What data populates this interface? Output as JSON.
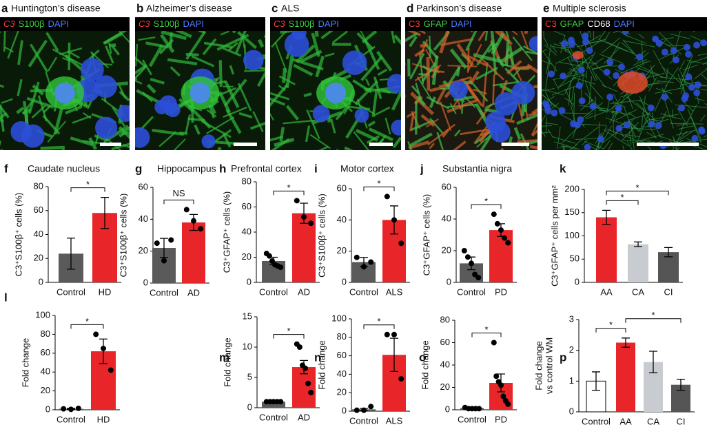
{
  "image_panels": [
    {
      "letter": "a",
      "title": "Huntington’s disease",
      "stains": [
        {
          "text": "C3",
          "color": "#ff3b30"
        },
        {
          "text": "S100β",
          "color": "#3fd13f"
        },
        {
          "text": "DAPI",
          "color": "#4a7bff"
        }
      ]
    },
    {
      "letter": "b",
      "title": "Alzheimer’s disease",
      "stains": [
        {
          "text": "C3",
          "color": "#ff3b30"
        },
        {
          "text": "S100β",
          "color": "#3fd13f"
        },
        {
          "text": "DAPI",
          "color": "#4a7bff"
        }
      ]
    },
    {
      "letter": "c",
      "title": "ALS",
      "stains": [
        {
          "text": "C3",
          "color": "#ff3b30"
        },
        {
          "text": "S100β",
          "color": "#3fd13f"
        },
        {
          "text": "DAPI",
          "color": "#4a7bff"
        }
      ]
    },
    {
      "letter": "d",
      "title": "Parkinson’s disease",
      "stains": [
        {
          "text": "C3",
          "color": "#ff3b30"
        },
        {
          "text": "GFAP",
          "color": "#3fd13f"
        },
        {
          "text": "DAPI",
          "color": "#4a7bff"
        }
      ]
    },
    {
      "letter": "e",
      "title": "Multiple sclerosis",
      "stains": [
        {
          "text": "C3",
          "color": "#ff3b30"
        },
        {
          "text": "GFAP",
          "color": "#3fd13f"
        },
        {
          "text": "CD68",
          "color": "#ffffff"
        },
        {
          "text": "DAPI",
          "color": "#4a7bff"
        }
      ]
    }
  ],
  "chart_data": [
    {
      "type": "bar",
      "letter": "f",
      "title": "Caudate nucleus",
      "ylabel": [
        "C3⁺S100β⁺ cells (%)"
      ],
      "categories": [
        "Control",
        "HD"
      ],
      "values": [
        24,
        58
      ],
      "errors": [
        13,
        13
      ],
      "colors": [
        "#5a5a5a",
        "#e8262a"
      ],
      "ylim": [
        0,
        80
      ],
      "yticks": [
        0,
        20,
        40,
        60,
        80
      ],
      "brackets": [
        {
          "from": 0,
          "to": 1,
          "label": "*"
        }
      ]
    },
    {
      "type": "bar",
      "letter": "g",
      "title": "Hippocampus",
      "ylabel": [
        "C3⁺S100β⁺ cells (%)"
      ],
      "categories": [
        "Control",
        "AD"
      ],
      "values": [
        22,
        38
      ],
      "errors": [
        6,
        5
      ],
      "points": [
        [
          25,
          14,
          27
        ],
        [
          46,
          39,
          34
        ]
      ],
      "colors": [
        "#5a5a5a",
        "#e8262a"
      ],
      "ylim": [
        0,
        60
      ],
      "yticks": [
        0,
        20,
        40,
        60
      ],
      "brackets": [
        {
          "from": 0,
          "to": 1,
          "label": "NS"
        }
      ]
    },
    {
      "type": "bar",
      "letter": "h",
      "title": "Prefrontal cortex",
      "ylabel": [
        "C3⁺GFAP⁺ cells (%)"
      ],
      "categories": [
        "Control",
        "AD"
      ],
      "values": [
        17,
        55
      ],
      "errors": [
        3,
        8
      ],
      "points": [
        [
          23,
          21,
          17,
          14,
          13,
          12
        ],
        [
          65,
          52,
          47
        ]
      ],
      "colors": [
        "#5a5a5a",
        "#e8262a"
      ],
      "ylim": [
        0,
        80
      ],
      "yticks": [
        0,
        20,
        40,
        60,
        80
      ],
      "brackets": [
        {
          "from": 0,
          "to": 1,
          "label": "*"
        }
      ]
    },
    {
      "type": "bar",
      "letter": "i",
      "title": "Motor cortex",
      "ylabel": [
        "C3⁺S100β⁺ cells (%)"
      ],
      "categories": [
        "Control",
        "ALS"
      ],
      "values": [
        13,
        40
      ],
      "errors": [
        3,
        9
      ],
      "points": [
        [
          16,
          10,
          13
        ],
        [
          55,
          40,
          25
        ]
      ],
      "colors": [
        "#5a5a5a",
        "#e8262a"
      ],
      "ylim": [
        0,
        60
      ],
      "yticks": [
        0,
        20,
        40,
        60
      ],
      "brackets": [
        {
          "from": 0,
          "to": 1,
          "label": "*"
        }
      ]
    },
    {
      "type": "bar",
      "letter": "j",
      "title": "Substantia nigra",
      "ylabel": [
        "C3⁺GFAP⁺ cells (%)"
      ],
      "categories": [
        "Control",
        "PD"
      ],
      "values": [
        12,
        33
      ],
      "errors": [
        4,
        4
      ],
      "points": [
        [
          20,
          16,
          12,
          5,
          3
        ],
        [
          43,
          37,
          33,
          28,
          25
        ]
      ],
      "colors": [
        "#5a5a5a",
        "#e8262a"
      ],
      "ylim": [
        0,
        60
      ],
      "yticks": [
        0,
        20,
        40,
        60
      ],
      "brackets": [
        {
          "from": 0,
          "to": 1,
          "label": "*"
        }
      ]
    },
    {
      "type": "bar",
      "letter": "k",
      "ylabel": [
        "C3⁺GFAP⁺ cells per mm²"
      ],
      "categories": [
        "AA",
        "CA",
        "CI"
      ],
      "values": [
        140,
        82,
        65
      ],
      "errors": [
        15,
        5,
        10
      ],
      "colors": [
        "#e8262a",
        "#c8ccd0",
        "#555555"
      ],
      "ylim": [
        0,
        200
      ],
      "yticks": [
        0,
        50,
        100,
        150,
        200
      ],
      "brackets": [
        {
          "from": 0,
          "to": 1,
          "label": "*"
        },
        {
          "from": 0,
          "to": 2,
          "label": "*"
        }
      ]
    },
    {
      "type": "bar",
      "letter": "l",
      "ylabel": [
        "Fold change"
      ],
      "categories": [
        "Control",
        "HD"
      ],
      "values": [
        1,
        62
      ],
      "errors": [
        0.5,
        13
      ],
      "points": [
        [
          1,
          0.5,
          1.5
        ],
        [
          80,
          65,
          42
        ]
      ],
      "colors": [
        "#5a5a5a",
        "#e8262a"
      ],
      "ylim": [
        0,
        100
      ],
      "yticks": [
        0,
        20,
        40,
        60,
        80,
        100
      ],
      "brackets": [
        {
          "from": 0,
          "to": 1,
          "label": "*"
        }
      ]
    },
    {
      "type": "bar",
      "letter": "m",
      "ylabel": [
        "Fold change"
      ],
      "categories": [
        "Control",
        "AD"
      ],
      "values": [
        1,
        6.7
      ],
      "errors": [
        0.1,
        1.1
      ],
      "points": [
        [
          1,
          1,
          1,
          1,
          1
        ],
        [
          10.5,
          10,
          7,
          6.5,
          4,
          2.5
        ]
      ],
      "colors": [
        "#5a5a5a",
        "#e8262a"
      ],
      "ylim": [
        0,
        15
      ],
      "yticks": [
        0,
        5,
        10,
        15
      ],
      "brackets": [
        {
          "from": 0,
          "to": 1,
          "label": "*"
        }
      ]
    },
    {
      "type": "bar",
      "letter": "n",
      "ylabel": [
        "Fold change"
      ],
      "categories": [
        "Control",
        "ALS"
      ],
      "values": [
        2,
        61
      ],
      "errors": [
        1,
        18
      ],
      "points": [
        [
          1,
          1,
          5
        ],
        [
          83,
          83,
          35
        ]
      ],
      "colors": [
        "#5a5a5a",
        "#e8262a"
      ],
      "ylim": [
        0,
        100
      ],
      "yticks": [
        0,
        20,
        40,
        60,
        80,
        100
      ],
      "brackets": [
        {
          "from": 0,
          "to": 1,
          "label": "*"
        }
      ]
    },
    {
      "type": "bar",
      "letter": "o",
      "ylabel": [
        "Fold change"
      ],
      "categories": [
        "Control",
        "PD"
      ],
      "values": [
        1.5,
        24
      ],
      "errors": [
        0.5,
        8
      ],
      "points": [
        [
          2,
          1,
          1,
          1,
          1
        ],
        [
          60,
          30,
          25,
          22,
          12,
          8,
          5
        ]
      ],
      "colors": [
        "#5a5a5a",
        "#e8262a"
      ],
      "ylim": [
        0,
        80
      ],
      "yticks": [
        0,
        20,
        40,
        60,
        80
      ],
      "brackets": [
        {
          "from": 0,
          "to": 1,
          "label": "*"
        }
      ]
    },
    {
      "type": "bar",
      "letter": "p",
      "ylabel": [
        "Fold change",
        "vs control WM"
      ],
      "categories": [
        "Control",
        "AA",
        "CA",
        "CI"
      ],
      "values": [
        1.0,
        2.25,
        1.62,
        0.88
      ],
      "errors": [
        0.3,
        0.15,
        0.35,
        0.18
      ],
      "colors": [
        "#ffffff",
        "#e8262a",
        "#c8ccd0",
        "#555555"
      ],
      "ylim": [
        0,
        3
      ],
      "yticks": [
        0,
        1,
        2,
        3
      ],
      "brackets": [
        {
          "from": 0,
          "to": 1,
          "label": "*"
        },
        {
          "from": 1,
          "to": 3,
          "label": "*"
        }
      ]
    }
  ]
}
